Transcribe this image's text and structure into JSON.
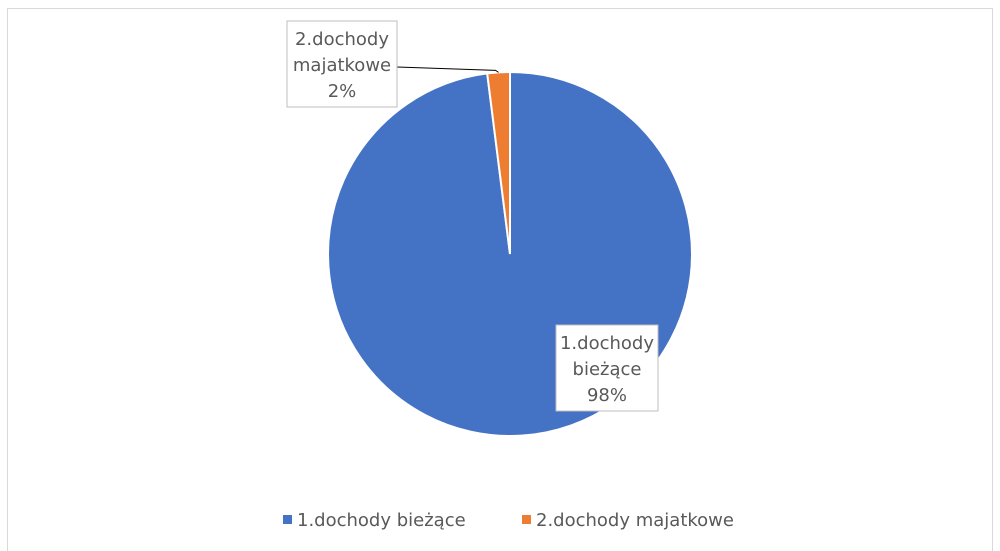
{
  "chart_data": {
    "type": "pie",
    "title": "",
    "categories": [
      "1.dochody bieżące",
      "2.dochody majatkowe"
    ],
    "values": [
      98,
      2
    ],
    "colors": [
      "#4472c4",
      "#ed7d31"
    ],
    "data_labels": [
      {
        "lines": [
          "1.dochody",
          "bieżące",
          "98%"
        ]
      },
      {
        "lines": [
          "2.dochody",
          "majatkowe",
          "2%"
        ]
      }
    ],
    "legend": {
      "position": "bottom",
      "entries": [
        "1.dochody bieżące",
        "2.dochody majatkowe"
      ]
    }
  }
}
